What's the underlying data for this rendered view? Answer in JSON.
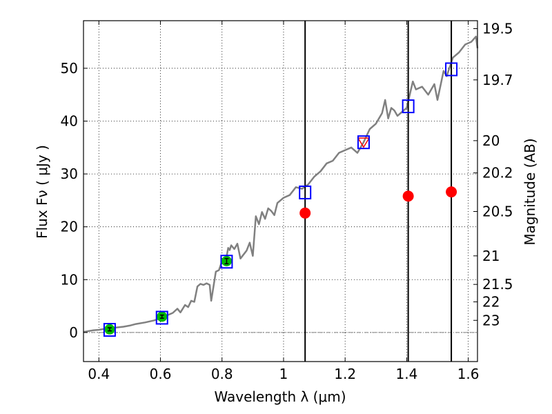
{
  "chart_data": {
    "type": "line",
    "xlabel": "Wavelength  λ (μm)",
    "ylabel": "Flux  Fν  ( μJy )",
    "y2label": "Magnitude (AB)",
    "xlim": [
      0.35,
      1.63
    ],
    "ylim": [
      -5.5,
      59
    ],
    "grid": true,
    "x_ticks": [
      0.4,
      0.6,
      0.8,
      1.0,
      1.2,
      1.4,
      1.6
    ],
    "x_tick_labels": [
      "0.4",
      "0.6",
      "0.8",
      "1",
      "1.2",
      "1.4",
      "1.6"
    ],
    "y_ticks": [
      0,
      10,
      20,
      30,
      40,
      50
    ],
    "y_tick_labels": [
      "0",
      "10",
      "20",
      "30",
      "40",
      "50"
    ],
    "mag_ticks": [
      {
        "label": "19.5",
        "flux": 57.5
      },
      {
        "label": "19.7",
        "flux": 47.8
      },
      {
        "label": "20",
        "flux": 36.3
      },
      {
        "label": "20.2",
        "flux": 30.2
      },
      {
        "label": "20.5",
        "flux": 22.9
      },
      {
        "label": "21",
        "flux": 14.5
      },
      {
        "label": "21.5",
        "flux": 9.1
      },
      {
        "label": "22",
        "flux": 5.8
      },
      {
        "label": "23",
        "flux": 2.3
      }
    ],
    "vertical_lines": [
      1.07,
      1.405,
      1.545
    ],
    "model_spectrum": {
      "color": "#808080",
      "x": [
        0.35,
        0.38,
        0.4,
        0.42,
        0.45,
        0.48,
        0.5,
        0.52,
        0.55,
        0.58,
        0.6,
        0.62,
        0.64,
        0.655,
        0.665,
        0.68,
        0.69,
        0.7,
        0.71,
        0.72,
        0.73,
        0.74,
        0.75,
        0.76,
        0.765,
        0.78,
        0.79,
        0.8,
        0.81,
        0.82,
        0.825,
        0.83,
        0.84,
        0.85,
        0.86,
        0.88,
        0.89,
        0.9,
        0.91,
        0.92,
        0.93,
        0.94,
        0.95,
        0.96,
        0.97,
        0.98,
        0.99,
        1.0,
        1.02,
        1.04,
        1.06,
        1.08,
        1.1,
        1.12,
        1.14,
        1.16,
        1.18,
        1.2,
        1.22,
        1.24,
        1.26,
        1.28,
        1.3,
        1.32,
        1.33,
        1.34,
        1.35,
        1.36,
        1.37,
        1.38,
        1.39,
        1.4,
        1.42,
        1.43,
        1.45,
        1.47,
        1.49,
        1.5,
        1.52,
        1.53,
        1.55,
        1.57,
        1.59,
        1.61,
        1.625,
        1.63
      ],
      "y": [
        0.1,
        0.4,
        0.5,
        0.7,
        0.9,
        1.1,
        1.3,
        1.6,
        1.9,
        2.3,
        2.7,
        3.2,
        3.7,
        4.5,
        3.8,
        5.2,
        4.8,
        6.0,
        5.8,
        8.7,
        9.2,
        9.0,
        9.3,
        9.0,
        6.0,
        11.5,
        11.8,
        13.5,
        12.8,
        16.0,
        15.6,
        16.5,
        15.8,
        16.8,
        14.0,
        15.5,
        17.0,
        14.5,
        22.0,
        20.5,
        22.8,
        21.5,
        23.5,
        23.0,
        22.2,
        24.5,
        25.0,
        25.5,
        26.0,
        27.5,
        27.2,
        28.0,
        29.5,
        30.5,
        32.0,
        32.5,
        34.0,
        34.5,
        35.0,
        34.0,
        36.0,
        38.5,
        39.5,
        41.5,
        44.0,
        40.5,
        42.5,
        42.0,
        41.0,
        41.5,
        42.0,
        42.5,
        47.5,
        46.0,
        46.5,
        45.0,
        47.0,
        44.0,
        49.5,
        48.5,
        52.0,
        53.0,
        54.5,
        55.0,
        56.0,
        53.8
      ]
    },
    "model_photometry": {
      "marker": "open-square",
      "color": "#0000ff",
      "x": [
        0.435,
        0.605,
        0.815,
        1.07,
        1.26,
        1.405,
        1.545
      ],
      "y": [
        0.5,
        2.8,
        13.4,
        26.5,
        36.0,
        42.8,
        49.8
      ]
    },
    "observed_detections": {
      "marker": "filled-circle",
      "color": "#00bb00",
      "x": [
        0.435,
        0.605,
        0.815
      ],
      "y": [
        0.6,
        3.0,
        13.5
      ],
      "yerr": [
        0.3,
        0.3,
        0.5
      ]
    },
    "observed_upper_limit": {
      "marker": "open-triangle-down",
      "color": "#ff0000",
      "x": [
        1.26
      ],
      "y": [
        36.0
      ]
    },
    "observed_other": {
      "marker": "filled-circle",
      "color": "#ff0000",
      "x": [
        1.07,
        1.405,
        1.545
      ],
      "y": [
        22.6,
        25.8,
        26.6
      ]
    }
  }
}
